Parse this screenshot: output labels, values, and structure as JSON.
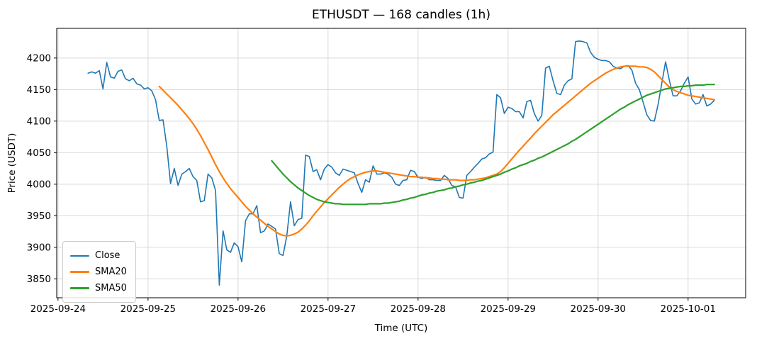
{
  "chart_data": {
    "type": "line",
    "title": "ETHUSDT — 168 candles (1h)",
    "xlabel": "Time (UTC)",
    "ylabel": "Price (USDT)",
    "x_unit": "hourly candle index",
    "candle_count": 168,
    "grid": true,
    "legend_position": "lower left",
    "background_color": "#ffffff",
    "grid_color": "#d9d9d9",
    "spine_color": "#000000",
    "text_color": "#000000",
    "xlim": [
      -8.35,
      175.35
    ],
    "ylim": [
      3820,
      4247
    ],
    "yticks": [
      3850,
      3900,
      3950,
      4000,
      4050,
      4100,
      4150,
      4200
    ],
    "xticks": [
      {
        "i": -8,
        "label": "2025-09-24"
      },
      {
        "i": 16,
        "label": "2025-09-25"
      },
      {
        "i": 40,
        "label": "2025-09-26"
      },
      {
        "i": 64,
        "label": "2025-09-27"
      },
      {
        "i": 88,
        "label": "2025-09-28"
      },
      {
        "i": 112,
        "label": "2025-09-29"
      },
      {
        "i": 136,
        "label": "2025-09-30"
      },
      {
        "i": 160,
        "label": "2025-10-01"
      }
    ],
    "series": [
      {
        "name": "Close",
        "color": "#1f77b4",
        "start_index": 0,
        "values": [
          4176,
          4178,
          4176,
          4180,
          4151,
          4193,
          4170,
          4168,
          4179,
          4181,
          4167,
          4164,
          4168,
          4159,
          4157,
          4151,
          4153,
          4148,
          4134,
          4101,
          4102,
          4060,
          4001,
          4025,
          3998,
          4016,
          4020,
          4025,
          4012,
          4006,
          3972,
          3974,
          4016,
          4010,
          3990,
          3840,
          3926,
          3896,
          3892,
          3907,
          3901,
          3877,
          3942,
          3953,
          3953,
          3966,
          3923,
          3926,
          3937,
          3933,
          3929,
          3890,
          3887,
          3918,
          3972,
          3934,
          3944,
          3946,
          4046,
          4044,
          4020,
          4023,
          4007,
          4024,
          4031,
          4027,
          4018,
          4014,
          4024,
          4022,
          4020,
          4018,
          4001,
          3987,
          4007,
          4003,
          4029,
          4016,
          4016,
          4018,
          4016,
          4011,
          4000,
          3998,
          4006,
          4007,
          4022,
          4020,
          4011,
          4009,
          4011,
          4007,
          4007,
          4006,
          4006,
          4014,
          4009,
          3998,
          3996,
          3979,
          3978,
          4014,
          4020,
          4027,
          4033,
          4040,
          4042,
          4048,
          4051,
          4142,
          4137,
          4112,
          4122,
          4120,
          4115,
          4115,
          4105,
          4131,
          4133,
          4112,
          4100,
          4109,
          4184,
          4187,
          4164,
          4144,
          4142,
          4157,
          4164,
          4167,
          4226,
          4227,
          4226,
          4224,
          4209,
          4201,
          4198,
          4196,
          4196,
          4194,
          4187,
          4184,
          4183,
          4187,
          4188,
          4181,
          4160,
          4150,
          4130,
          4110,
          4101,
          4100,
          4126,
          4160,
          4194,
          4165,
          4140,
          4140,
          4148,
          4160,
          4170,
          4135,
          4127,
          4129,
          4142,
          4124,
          4127,
          4133
        ]
      },
      {
        "name": "SMA20",
        "color": "#ff7f0e",
        "start_index": 19,
        "values": [
          4155,
          4149,
          4143,
          4137,
          4131,
          4125,
          4118,
          4111,
          4104,
          4096,
          4087,
          4077,
          4066,
          4055,
          4043,
          4031,
          4020,
          4010,
          4001,
          3993,
          3986,
          3979,
          3972,
          3965,
          3959,
          3953,
          3948,
          3943,
          3938,
          3933,
          3929,
          3925,
          3921,
          3919,
          3918,
          3919,
          3921,
          3924,
          3929,
          3935,
          3942,
          3950,
          3957,
          3964,
          3971,
          3977,
          3983,
          3989,
          3995,
          4000,
          4005,
          4009,
          4012,
          4015,
          4017,
          4019,
          4020,
          4021,
          4021,
          4020,
          4019,
          4018,
          4017,
          4016,
          4015,
          4014,
          4013,
          4012,
          4012,
          4011,
          4011,
          4010,
          4010,
          4009,
          4009,
          4008,
          4008,
          4007,
          4007,
          4007,
          4006,
          4006,
          4006,
          4007,
          4007,
          4008,
          4009,
          4010,
          4012,
          4014,
          4016,
          4020,
          4026,
          4033,
          4040,
          4047,
          4054,
          4060,
          4067,
          4073,
          4080,
          4086,
          4092,
          4098,
          4104,
          4110,
          4115,
          4120,
          4125,
          4130,
          4135,
          4140,
          4145,
          4150,
          4155,
          4160,
          4164,
          4168,
          4172,
          4176,
          4179,
          4182,
          4184,
          4186,
          4187,
          4187,
          4187,
          4187,
          4186,
          4186,
          4185,
          4182,
          4178,
          4172,
          4166,
          4160,
          4154,
          4150,
          4147,
          4145,
          4143,
          4141,
          4140,
          4139,
          4138,
          4137,
          4136,
          4135,
          4134
        ]
      },
      {
        "name": "SMA50",
        "color": "#2ca02c",
        "start_index": 49,
        "values": [
          4037,
          4030,
          4023,
          4016,
          4010,
          4004,
          3999,
          3994,
          3990,
          3986,
          3982,
          3979,
          3976,
          3974,
          3972,
          3971,
          3970,
          3969,
          3969,
          3968,
          3968,
          3968,
          3968,
          3968,
          3968,
          3968,
          3969,
          3969,
          3969,
          3969,
          3970,
          3970,
          3971,
          3972,
          3973,
          3975,
          3976,
          3978,
          3979,
          3981,
          3983,
          3984,
          3986,
          3987,
          3989,
          3990,
          3991,
          3993,
          3994,
          3996,
          3997,
          3999,
          4000,
          4002,
          4003,
          4005,
          4006,
          4008,
          4010,
          4012,
          4014,
          4016,
          4019,
          4021,
          4024,
          4026,
          4029,
          4031,
          4033,
          4036,
          4038,
          4041,
          4043,
          4046,
          4049,
          4052,
          4055,
          4058,
          4061,
          4064,
          4068,
          4071,
          4075,
          4079,
          4083,
          4087,
          4091,
          4095,
          4099,
          4103,
          4107,
          4111,
          4115,
          4119,
          4122,
          4126,
          4129,
          4132,
          4135,
          4138,
          4141,
          4143,
          4145,
          4147,
          4149,
          4151,
          4152,
          4153,
          4154,
          4155,
          4155,
          4156,
          4156,
          4157,
          4157,
          4157,
          4158,
          4158,
          4158
        ]
      }
    ]
  }
}
